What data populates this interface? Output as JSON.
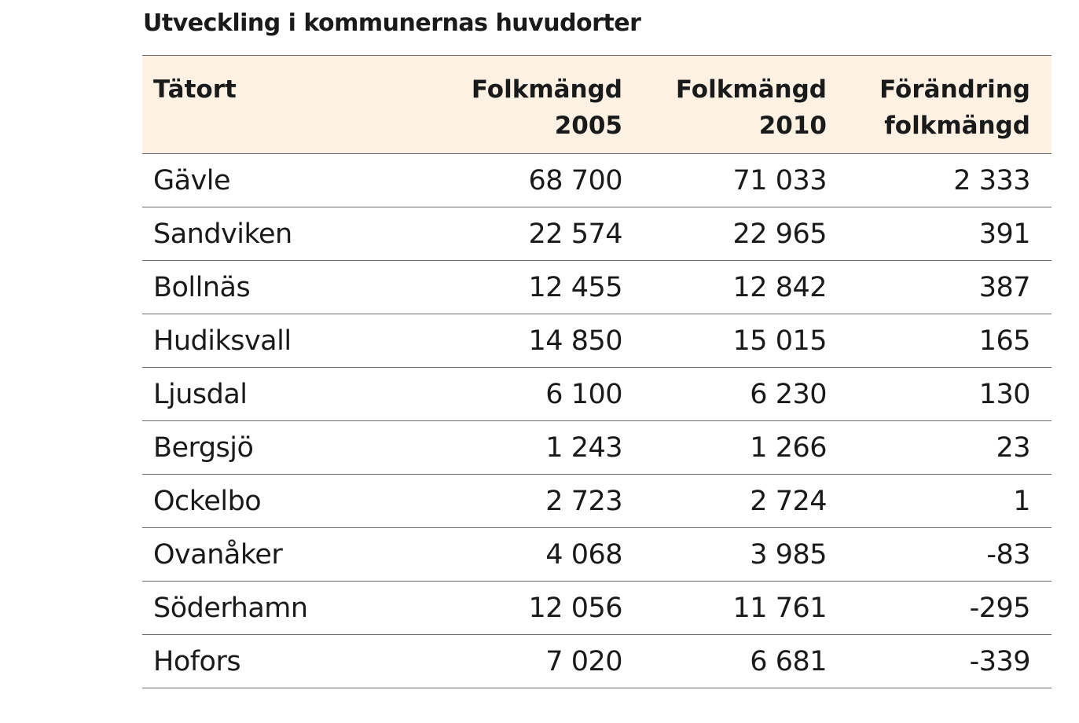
{
  "title": "Utveckling i kommunernas huvudorter",
  "columns": {
    "name": "Tätort",
    "pop2005": [
      "Folkmängd",
      "2005"
    ],
    "pop2010": [
      "Folkmängd",
      "2010"
    ],
    "change": [
      "Förändring",
      "folkmängd"
    ]
  },
  "rows": [
    {
      "name": "Gävle",
      "pop2005": "68 700",
      "pop2010": "71 033",
      "change": "2 333"
    },
    {
      "name": "Sandviken",
      "pop2005": "22 574",
      "pop2010": "22 965",
      "change": "391"
    },
    {
      "name": "Bollnäs",
      "pop2005": "12 455",
      "pop2010": "12 842",
      "change": "387"
    },
    {
      "name": "Hudiksvall",
      "pop2005": "14 850",
      "pop2010": "15 015",
      "change": "165"
    },
    {
      "name": "Ljusdal",
      "pop2005": "6 100",
      "pop2010": "6 230",
      "change": "130"
    },
    {
      "name": "Bergsjö",
      "pop2005": "1 243",
      "pop2010": "1 266",
      "change": "23"
    },
    {
      "name": "Ockelbo",
      "pop2005": "2 723",
      "pop2010": "2 724",
      "change": "1"
    },
    {
      "name": "Ovanåker",
      "pop2005": "4 068",
      "pop2010": "3 985",
      "change": "-83"
    },
    {
      "name": "Söderhamn",
      "pop2005": "12 056",
      "pop2010": "11 761",
      "change": "-295"
    },
    {
      "name": "Hofors",
      "pop2005": "7 020",
      "pop2010": "6 681",
      "change": "-339"
    }
  ]
}
